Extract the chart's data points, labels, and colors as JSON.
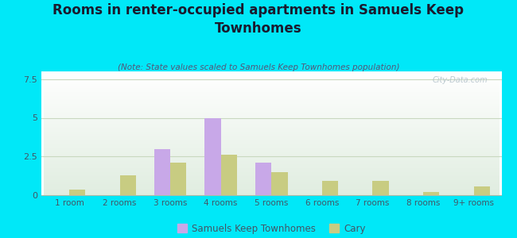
{
  "title": "Rooms in renter-occupied apartments in Samuels Keep\nTownhomes",
  "subtitle": "(Note: State values scaled to Samuels Keep Townhomes population)",
  "categories": [
    "1 room",
    "2 rooms",
    "3 rooms",
    "4 rooms",
    "5 rooms",
    "6 rooms",
    "7 rooms",
    "8 rooms",
    "9+ rooms"
  ],
  "samuels_values": [
    0,
    0,
    3.0,
    5.0,
    2.1,
    0,
    0,
    0,
    0
  ],
  "cary_values": [
    0.35,
    1.3,
    2.1,
    2.6,
    1.5,
    0.9,
    0.9,
    0.2,
    0.55
  ],
  "samuels_color": "#c8a8e8",
  "cary_color": "#c8cc82",
  "background_outer": "#00e8f8",
  "title_color": "#1a1a2e",
  "subtitle_color": "#555577",
  "tick_color": "#445566",
  "ylim": [
    0,
    8
  ],
  "yticks": [
    0,
    2.5,
    5,
    7.5
  ],
  "bar_width": 0.32,
  "legend_samuels": "Samuels Keep Townhomes",
  "legend_cary": "Cary",
  "title_fontsize": 12,
  "subtitle_fontsize": 7.5,
  "watermark": "City-Data.com"
}
